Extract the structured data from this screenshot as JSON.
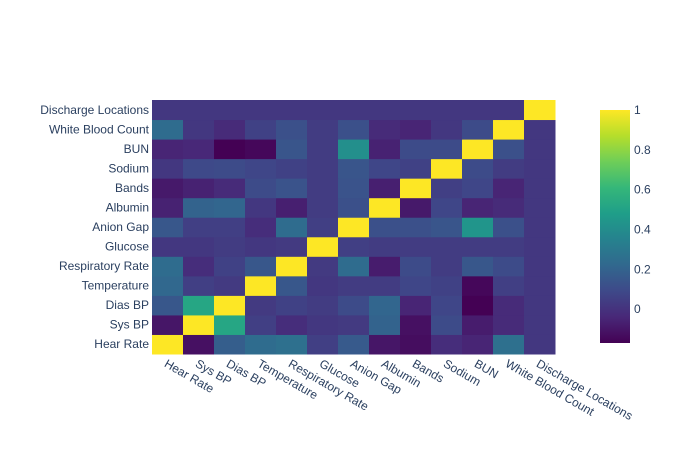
{
  "chart_data": {
    "type": "heatmap",
    "title": "",
    "xlabel": "",
    "ylabel": "",
    "categories": [
      "Hear Rate",
      "Sys BP",
      "Dias BP",
      "Temperature",
      "Respiratory Rate",
      "Glucose",
      "Anion Gap",
      "Albumin",
      "Bands",
      "Sodium",
      "BUN",
      "White Blood Count",
      "Discharge Locations"
    ],
    "z": [
      [
        1.0,
        -0.12,
        0.18,
        0.24,
        0.26,
        0.05,
        0.16,
        -0.1,
        -0.13,
        -0.02,
        -0.05,
        0.26,
        0.02
      ],
      [
        -0.1,
        1.0,
        0.52,
        0.05,
        -0.02,
        0.02,
        0.03,
        0.2,
        -0.12,
        0.1,
        -0.08,
        -0.03,
        0.02
      ],
      [
        0.15,
        0.52,
        1.0,
        0.03,
        0.06,
        0.04,
        0.1,
        0.21,
        -0.05,
        0.08,
        -0.17,
        -0.03,
        0.02
      ],
      [
        0.22,
        0.05,
        0.03,
        1.0,
        0.15,
        0.02,
        0.04,
        0.04,
        0.08,
        0.06,
        -0.15,
        0.05,
        0.02
      ],
      [
        0.24,
        -0.02,
        0.06,
        0.15,
        1.0,
        0.03,
        0.24,
        -0.08,
        0.1,
        0.04,
        0.15,
        0.1,
        0.02
      ],
      [
        0.02,
        0.02,
        0.04,
        0.02,
        0.03,
        1.0,
        0.05,
        0.04,
        0.04,
        0.04,
        0.04,
        0.04,
        0.02
      ],
      [
        0.15,
        0.05,
        0.05,
        -0.02,
        0.24,
        0.05,
        1.0,
        0.12,
        0.12,
        0.14,
        0.44,
        0.12,
        0.02
      ],
      [
        -0.06,
        0.2,
        0.21,
        0.02,
        -0.07,
        0.04,
        0.12,
        1.0,
        -0.09,
        0.08,
        -0.05,
        -0.03,
        0.02
      ],
      [
        -0.09,
        -0.06,
        -0.03,
        0.1,
        0.13,
        0.04,
        0.13,
        -0.07,
        1.0,
        0.05,
        0.08,
        -0.05,
        0.02
      ],
      [
        0.02,
        0.09,
        0.1,
        0.08,
        0.06,
        0.04,
        0.14,
        0.08,
        0.06,
        1.0,
        0.1,
        0.04,
        0.02
      ],
      [
        -0.05,
        -0.04,
        -0.17,
        -0.15,
        0.14,
        0.04,
        0.41,
        -0.06,
        0.1,
        0.1,
        1.0,
        0.12,
        0.02
      ],
      [
        0.24,
        0.02,
        -0.03,
        0.06,
        0.12,
        0.04,
        0.12,
        -0.03,
        -0.05,
        0.02,
        0.1,
        1.0,
        0.02
      ],
      [
        0.02,
        0.02,
        0.02,
        0.02,
        0.02,
        0.02,
        0.02,
        0.02,
        0.02,
        0.02,
        0.02,
        0.02,
        1.0
      ]
    ],
    "zmin": -0.17,
    "zmax": 1,
    "colorscale": [
      "#440154",
      "#482878",
      "#3e4989",
      "#31688e",
      "#26828e",
      "#1f9e89",
      "#35b779",
      "#6ece58",
      "#b5de2b",
      "#fde725"
    ],
    "colorbar_ticks": [
      "0",
      "0.2",
      "0.4",
      "0.6",
      "0.8",
      "1"
    ],
    "grid": false,
    "legend": "right colorbar"
  }
}
